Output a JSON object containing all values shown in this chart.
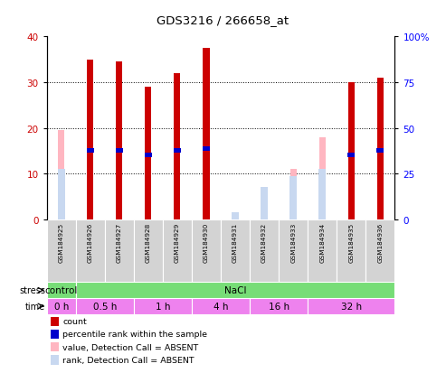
{
  "title": "GDS3216 / 266658_at",
  "samples": [
    "GSM184925",
    "GSM184926",
    "GSM184927",
    "GSM184928",
    "GSM184929",
    "GSM184930",
    "GSM184931",
    "GSM184932",
    "GSM184933",
    "GSM184934",
    "GSM184935",
    "GSM184936"
  ],
  "count_values": [
    0,
    35,
    34.5,
    29,
    32,
    37.5,
    0,
    0,
    0,
    0,
    30,
    31
  ],
  "percentile_rank": [
    0,
    15,
    15,
    14,
    15,
    15.5,
    0,
    0,
    0,
    0,
    14,
    15
  ],
  "absent_value": [
    19.5,
    0,
    0,
    0,
    0,
    0,
    0,
    6.5,
    11,
    18,
    0,
    0
  ],
  "absent_rank": [
    11,
    0,
    0,
    0,
    0,
    0,
    1.5,
    7,
    9.5,
    11,
    0,
    0
  ],
  "detection_absent": [
    true,
    false,
    false,
    false,
    false,
    false,
    true,
    true,
    true,
    true,
    false,
    false
  ],
  "ylim_left": [
    0,
    40
  ],
  "ylim_right": [
    0,
    100
  ],
  "yticks_left": [
    0,
    10,
    20,
    30,
    40
  ],
  "yticks_right": [
    0,
    25,
    50,
    75,
    100
  ],
  "ytick_labels_right": [
    "0",
    "25",
    "50",
    "75",
    "100%"
  ],
  "bar_color_count": "#cc0000",
  "bar_color_percentile": "#0000cc",
  "bar_color_absent_value": "#ffb6c1",
  "bar_color_absent_rank": "#c8d8f0",
  "bg_color": "#ffffff",
  "sample_bg": "#d3d3d3",
  "stress_color": "#77dd77",
  "time_color": "#ee82ee",
  "stress_regions": [
    {
      "label": "control",
      "xstart": -0.5,
      "xend": 0.5
    },
    {
      "label": "NaCl",
      "xstart": 0.5,
      "xend": 11.5
    }
  ],
  "time_regions": [
    {
      "label": "0 h",
      "xstart": -0.5,
      "xend": 0.5
    },
    {
      "label": "0.5 h",
      "xstart": 0.5,
      "xend": 2.5
    },
    {
      "label": "1 h",
      "xstart": 2.5,
      "xend": 4.5
    },
    {
      "label": "4 h",
      "xstart": 4.5,
      "xend": 6.5
    },
    {
      "label": "16 h",
      "xstart": 6.5,
      "xend": 8.5
    },
    {
      "label": "32 h",
      "xstart": 8.5,
      "xend": 11.5
    }
  ],
  "legend_items": [
    {
      "color": "#cc0000",
      "label": "count"
    },
    {
      "color": "#0000cc",
      "label": "percentile rank within the sample"
    },
    {
      "color": "#ffb6c1",
      "label": "value, Detection Call = ABSENT"
    },
    {
      "color": "#c8d8f0",
      "label": "rank, Detection Call = ABSENT"
    }
  ]
}
